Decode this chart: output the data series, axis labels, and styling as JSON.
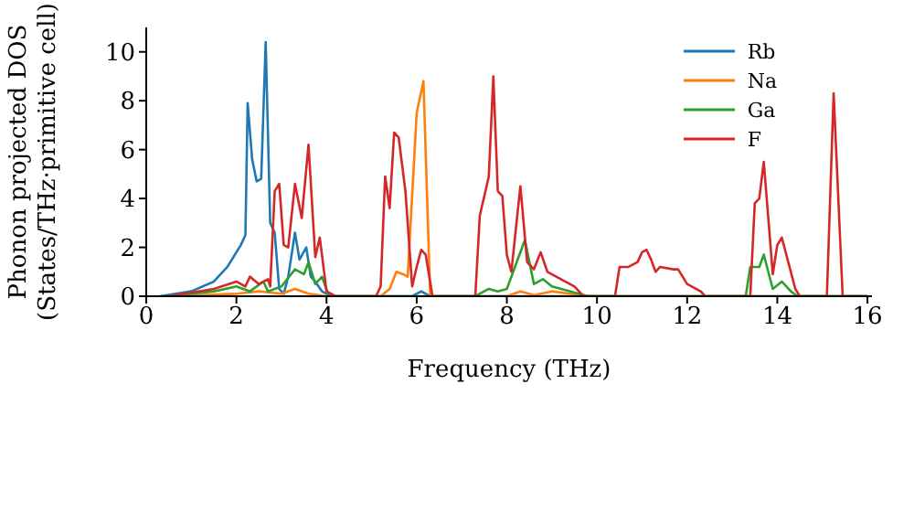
{
  "chart_data": {
    "type": "line",
    "xlabel": "Frequency (THz)",
    "ylabel": "Phonon projected DOS\n(States/THz·primitive cell)",
    "xlim": [
      0,
      16.1
    ],
    "xticks": [
      0,
      2,
      4,
      6,
      8,
      10,
      12,
      14,
      16
    ],
    "ylim": [
      0,
      11
    ],
    "yticks": [
      0,
      2,
      4,
      6,
      8,
      10
    ],
    "legend": "top right",
    "grid": false,
    "marker": "none",
    "line_style": "solid",
    "series": [
      {
        "name": "Rb",
        "color": "#1f77b4",
        "x": [
          0.3,
          1.0,
          1.5,
          1.8,
          2.0,
          2.1,
          2.2,
          2.25,
          2.35,
          2.45,
          2.55,
          2.65,
          2.75,
          2.85,
          2.95,
          3.05,
          3.15,
          3.3,
          3.4,
          3.55,
          3.65,
          3.75,
          3.9,
          4.1,
          5.9,
          6.1,
          6.3,
          16
        ],
        "values": [
          0,
          0.2,
          0.6,
          1.2,
          1.8,
          2.1,
          2.5,
          7.9,
          5.6,
          4.7,
          4.8,
          10.4,
          3.0,
          2.6,
          0.3,
          0.1,
          0.8,
          2.6,
          1.5,
          2.0,
          0.8,
          0.6,
          0.2,
          0,
          0,
          0.2,
          0,
          0
        ]
      },
      {
        "name": "Na",
        "color": "#ff7f0e",
        "x": [
          0.5,
          2.0,
          2.5,
          3.0,
          3.3,
          3.6,
          4.0,
          5.2,
          5.4,
          5.55,
          5.7,
          5.8,
          6.0,
          6.15,
          6.3,
          8.0,
          8.3,
          8.6,
          9.0,
          9.8,
          16
        ],
        "values": [
          0,
          0.1,
          0.2,
          0.1,
          0.3,
          0.1,
          0,
          0,
          0.3,
          1.0,
          0.9,
          0.8,
          7.5,
          8.8,
          0,
          0,
          0.2,
          0.05,
          0.2,
          0,
          0
        ]
      },
      {
        "name": "Ga",
        "color": "#2ca02c",
        "x": [
          0.5,
          1.5,
          2.0,
          2.3,
          2.6,
          2.7,
          3.0,
          3.3,
          3.5,
          3.6,
          3.75,
          3.9,
          4.05,
          7.3,
          7.6,
          7.8,
          8.0,
          8.4,
          8.6,
          8.8,
          9.0,
          9.8,
          13.3,
          13.4,
          13.6,
          13.7,
          13.9,
          14.1,
          14.3,
          14.45,
          16
        ],
        "values": [
          0,
          0.2,
          0.4,
          0.2,
          0.6,
          0.2,
          0.4,
          1.1,
          0.9,
          1.4,
          0.5,
          0.8,
          0,
          0,
          0.3,
          0.2,
          0.3,
          2.3,
          0.5,
          0.7,
          0.4,
          0,
          0,
          1.2,
          1.2,
          1.7,
          0.3,
          0.6,
          0.2,
          0,
          0
        ]
      },
      {
        "name": "F",
        "color": "#d62728",
        "x": [
          0.5,
          1.5,
          2.0,
          2.2,
          2.3,
          2.5,
          2.7,
          2.75,
          2.85,
          2.95,
          3.05,
          3.15,
          3.3,
          3.45,
          3.6,
          3.75,
          3.85,
          4.0,
          4.2,
          5.1,
          5.2,
          5.3,
          5.4,
          5.5,
          5.6,
          5.75,
          5.9,
          6.0,
          6.1,
          6.2,
          6.35,
          7.3,
          7.4,
          7.5,
          7.6,
          7.7,
          7.8,
          7.9,
          8.0,
          8.1,
          8.3,
          8.45,
          8.6,
          8.75,
          8.9,
          9.2,
          9.5,
          9.7,
          10.4,
          10.5,
          10.7,
          10.9,
          11.0,
          11.1,
          11.2,
          11.3,
          11.4,
          11.7,
          11.8,
          12.0,
          12.3,
          12.4,
          13.4,
          13.5,
          13.6,
          13.7,
          13.9,
          14.0,
          14.1,
          14.4,
          14.5,
          15.1,
          15.25,
          15.45,
          16
        ],
        "values": [
          0,
          0.3,
          0.6,
          0.4,
          0.8,
          0.5,
          0.7,
          0.4,
          4.3,
          4.6,
          2.1,
          2.0,
          4.6,
          3.2,
          6.2,
          1.6,
          2.4,
          0.2,
          0,
          0,
          0.4,
          4.9,
          3.6,
          6.7,
          6.5,
          4.3,
          0.4,
          1.2,
          1.9,
          1.7,
          0,
          0,
          3.3,
          4.1,
          4.9,
          9.0,
          4.3,
          4.1,
          1.7,
          1.0,
          4.5,
          1.4,
          1.1,
          1.8,
          1.0,
          0.7,
          0.4,
          0,
          0,
          1.2,
          1.2,
          1.4,
          1.8,
          1.9,
          1.5,
          1.0,
          1.2,
          1.1,
          1.1,
          0.5,
          0.2,
          0,
          0,
          3.8,
          4.0,
          5.5,
          0.9,
          2.1,
          2.4,
          0.3,
          0,
          0,
          8.3,
          0,
          0
        ]
      }
    ]
  }
}
